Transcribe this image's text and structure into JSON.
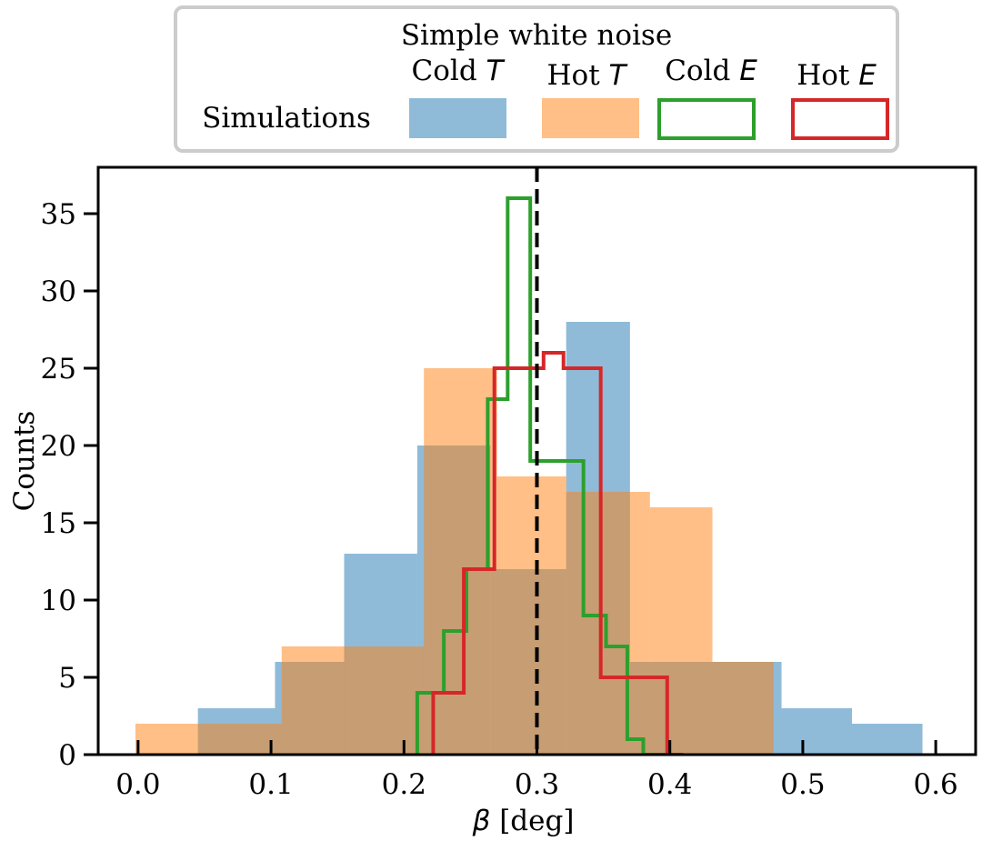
{
  "chart_data": {
    "type": "histogram",
    "title": "",
    "xlabel_symbol": "β",
    "xlabel_unit": "[deg]",
    "ylabel": "Counts",
    "xlim": [
      -0.03,
      0.63
    ],
    "ylim": [
      0,
      38
    ],
    "xticks": [
      0.0,
      0.1,
      0.2,
      0.3,
      0.4,
      0.5,
      0.6
    ],
    "xtick_labels": [
      "0.0",
      "0.1",
      "0.2",
      "0.3",
      "0.4",
      "0.5",
      "0.6"
    ],
    "yticks": [
      0,
      5,
      10,
      15,
      20,
      25,
      30,
      35
    ],
    "ytick_labels": [
      "0",
      "5",
      "10",
      "15",
      "20",
      "25",
      "30",
      "35"
    ],
    "grid": false,
    "reference_line": {
      "x": 0.3,
      "style": "dashed",
      "color": "#000000"
    },
    "legend": {
      "placement": "top-center",
      "title": "Simple white noise",
      "row_label": "Simulations",
      "entries": [
        {
          "name": "Cold",
          "symbol": "T",
          "series": 0
        },
        {
          "name": "Hot",
          "symbol": "T",
          "series": 1
        },
        {
          "name": "Cold",
          "symbol": "E",
          "series": 2
        },
        {
          "name": "Hot",
          "symbol": "E",
          "series": 3
        }
      ]
    },
    "series": [
      {
        "name": "Cold T",
        "style": "filled",
        "color": "#1f77b4",
        "alpha": 0.5,
        "bin_edges": [
          -0.026,
          0.045,
          0.103,
          0.155,
          0.21,
          0.265,
          0.322,
          0.37,
          0.43,
          0.484,
          0.537,
          0.59
        ],
        "counts": [
          0,
          3,
          6,
          13,
          20,
          12,
          28,
          6,
          6,
          3,
          2
        ]
      },
      {
        "name": "Hot T",
        "style": "filled",
        "color": "#ff7f0e",
        "alpha": 0.5,
        "bin_edges": [
          -0.002,
          0.045,
          0.108,
          0.155,
          0.215,
          0.27,
          0.322,
          0.385,
          0.432,
          0.478,
          0.545,
          0.61
        ],
        "counts": [
          2,
          2,
          7,
          7,
          25,
          18,
          17,
          16,
          6,
          0,
          0
        ]
      },
      {
        "name": "Cold E",
        "style": "step",
        "color": "#2ca02c",
        "bin_edges": [
          0.21,
          0.23,
          0.247,
          0.263,
          0.278,
          0.295,
          0.318,
          0.335,
          0.352,
          0.368,
          0.38,
          0.397
        ],
        "counts": [
          4,
          8,
          12,
          23,
          36,
          19,
          19,
          9,
          7,
          1,
          0
        ]
      },
      {
        "name": "Hot E",
        "style": "step",
        "color": "#d62728",
        "bin_edges": [
          0.222,
          0.245,
          0.268,
          0.285,
          0.305,
          0.32,
          0.348,
          0.372,
          0.398,
          0.41
        ],
        "counts": [
          4,
          12,
          25,
          25,
          26,
          25,
          5,
          5,
          0
        ]
      }
    ]
  }
}
